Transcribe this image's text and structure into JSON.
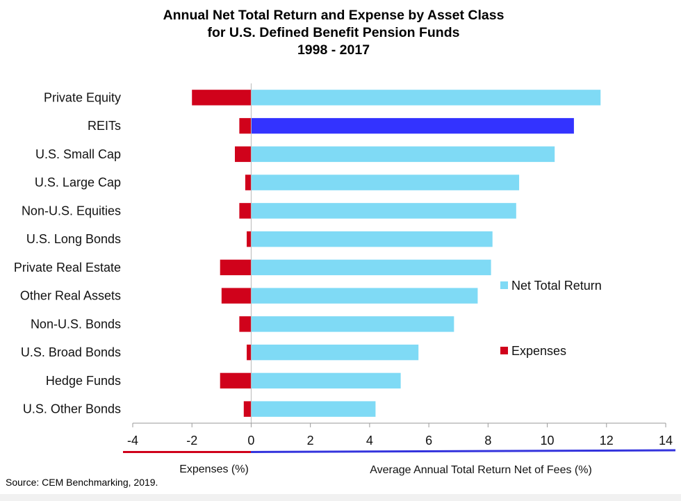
{
  "chart_data": {
    "type": "bar",
    "orientation": "horizontal",
    "title": "Annual Net Total Return and Expense by Asset Class",
    "subtitle_line1": "for U.S. Defined Benefit Pension Funds",
    "subtitle_line2": "1998 - 2017",
    "categories": [
      "Private Equity",
      "REITs",
      "U.S. Small Cap",
      "U.S. Large Cap",
      "Non-U.S. Equities",
      "U.S. Long Bonds",
      "Private Real Estate",
      "Other Real Assets",
      "Non-U.S. Bonds",
      "U.S. Broad Bonds",
      "Hedge Funds",
      "U.S. Other Bonds"
    ],
    "series": [
      {
        "name": "Net Total Return",
        "color": "#7fdaf5",
        "highlight_color": "#3333ff",
        "highlight_category": "REITs",
        "values": [
          11.8,
          10.9,
          10.25,
          9.05,
          8.95,
          8.15,
          8.1,
          7.65,
          6.85,
          5.65,
          5.05,
          4.2
        ]
      },
      {
        "name": "Expenses",
        "color": "#d0021b",
        "values": [
          -2.0,
          -0.4,
          -0.55,
          -0.2,
          -0.4,
          -0.15,
          -1.05,
          -1.0,
          -0.4,
          -0.15,
          -1.05,
          -0.25
        ]
      }
    ],
    "xlim": [
      -4,
      14
    ],
    "xticks": [
      "-4",
      "-2",
      "0",
      "2",
      "4",
      "6",
      "8",
      "10",
      "12",
      "14"
    ],
    "xlabel_left": "Expenses (%)",
    "xlabel_right": "Average Annual Total Return Net of Fees (%)",
    "negative_axis_color": "#d0021b",
    "positive_axis_color": "#3333dd",
    "legend_placement": "right",
    "grid": false
  },
  "source": "Source: CEM Benchmarking, 2019."
}
